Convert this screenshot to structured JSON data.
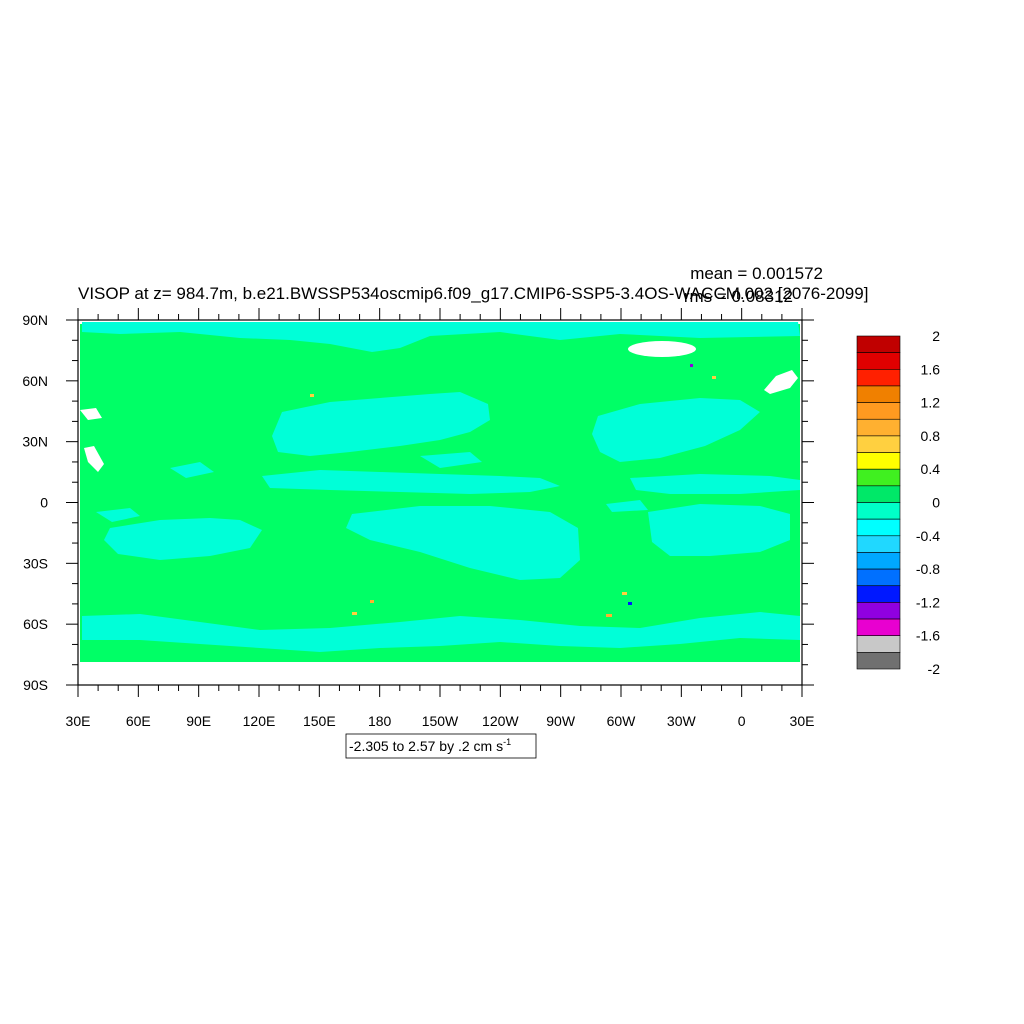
{
  "chart_data": {
    "type": "heatmap",
    "title": "VISOP at z= 984.7m, b.e21.BWSSP534oscmip6.f09_g17.CMIP6-SSP5-3.4OS-WACCM.002 [2076-2099]",
    "stats": {
      "mean": "mean = 0.001572",
      "rms": "rms = 0.08312"
    },
    "x_ticks": [
      "30E",
      "60E",
      "90E",
      "120E",
      "150E",
      "180",
      "150W",
      "120W",
      "90W",
      "60W",
      "30W",
      "0",
      "30E"
    ],
    "y_ticks": [
      "90N",
      "60N",
      "30N",
      "0",
      "30S",
      "60S",
      "90S"
    ],
    "xlim": [
      "30E",
      "30E"
    ],
    "ylim": [
      "90S",
      "90N"
    ],
    "contour_info": {
      "prefix": "-2.305 to 2.57 by .2 cm s",
      "superscript": "-1"
    },
    "colorbar": {
      "labels": [
        "2",
        "1.6",
        "1.2",
        "0.8",
        "0.4",
        "0",
        "-0.4",
        "-0.8",
        "-1.2",
        "-1.6",
        "-2"
      ],
      "colors_top_to_bottom": [
        "#c00000",
        "#e00000",
        "#ff2000",
        "#f08000",
        "#ff9a20",
        "#ffb030",
        "#ffd040",
        "#ffff00",
        "#40f020",
        "#00e868",
        "#00ffc8",
        "#00ffff",
        "#20d8ff",
        "#00a8ff",
        "#0070ff",
        "#0018ff",
        "#9000e0",
        "#e800d0",
        "#c8c8c8",
        "#707070"
      ]
    },
    "field_colors": {
      "positive_near_zero": "#00ff66",
      "negative_near_zero": "#00ffd8",
      "missing": "#ffffff"
    }
  }
}
